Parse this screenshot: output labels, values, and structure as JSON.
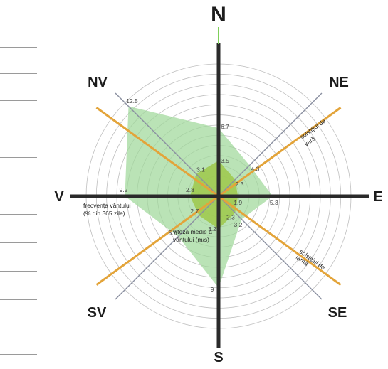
{
  "directions": {
    "N": "N",
    "NE": "NE",
    "E": "E",
    "SE": "SE",
    "S": "S",
    "SV": "SV",
    "V": "V",
    "NV": "NV"
  },
  "chart_data": {
    "type": "radar",
    "axes": [
      "N",
      "NE",
      "E",
      "SE",
      "S",
      "SV",
      "V",
      "NV"
    ],
    "series": [
      {
        "name": "frecvența vântului (% din 365 zile)",
        "values": [
          6.7,
          4.3,
          5.3,
          3.2,
          9.0,
          5.6,
          9.2,
          12.5
        ],
        "color": "#9fd89a"
      },
      {
        "name": "viteza medie a vântului (m/s)",
        "values": [
          3.5,
          2.3,
          1.9,
          2.3,
          3.2,
          2.7,
          2.8,
          3.1
        ],
        "color": "#9ec84a"
      }
    ],
    "ring_count": 13,
    "ring_max": 13
  },
  "labels": {
    "wind_frequency": [
      "frecvența vântului",
      "(% din 365 zile)"
    ],
    "wind_speed": [
      "viteza medie a",
      "vântului (m/s)"
    ],
    "summer_solstice": [
      "solstițiul de",
      "vară"
    ],
    "winter_solstice": [
      "solstițiul de",
      "iarnă"
    ]
  },
  "colors": {
    "rings": "#bfbfbf",
    "main_axes": "#2a2a2a",
    "diagonals": "#8a8fa0",
    "solstice_lines": "#e3a43a",
    "frequency_fill": "#9fd89a",
    "speed_fill": "#9ec84a"
  }
}
